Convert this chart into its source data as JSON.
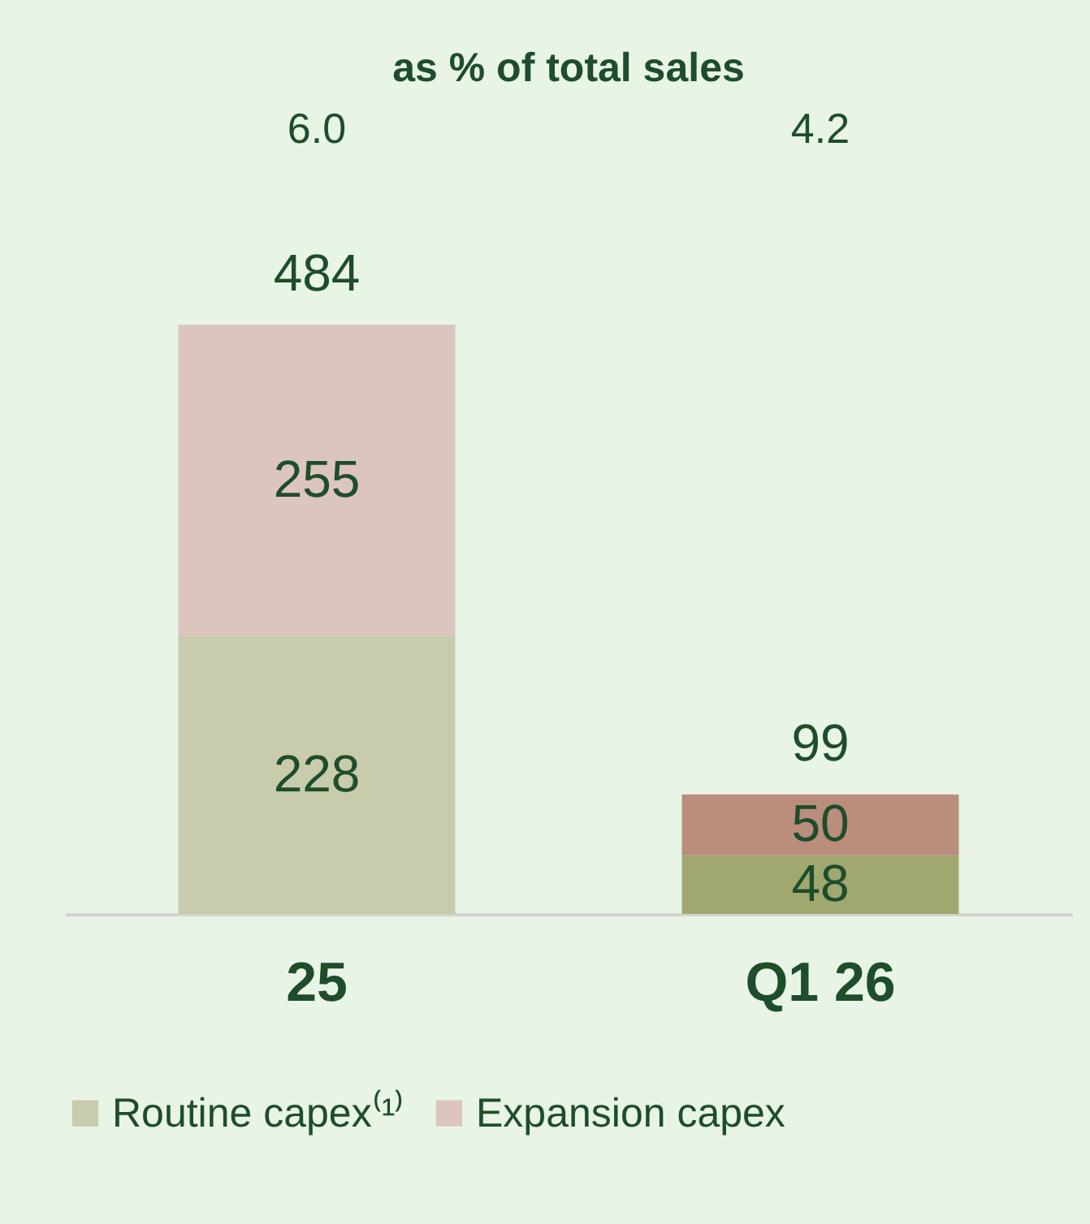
{
  "chart_data": {
    "type": "bar",
    "stacked": true,
    "categories": [
      "25",
      "Q1 26"
    ],
    "series": [
      {
        "name": "Routine capex⁽¹⁾",
        "colors": [
          "#c8cbac",
          "#a1a86f"
        ],
        "values": [
          228,
          48
        ]
      },
      {
        "name": "Expansion capex",
        "colors": [
          "#dcc5bd",
          "#bb8d7d"
        ],
        "values": [
          255,
          50
        ]
      }
    ],
    "totals": [
      "484",
      "99"
    ],
    "data_labels": true,
    "legend": "bottom",
    "annotations": [
      "as % of total sales",
      "6.0",
      "4.2"
    ]
  }
}
